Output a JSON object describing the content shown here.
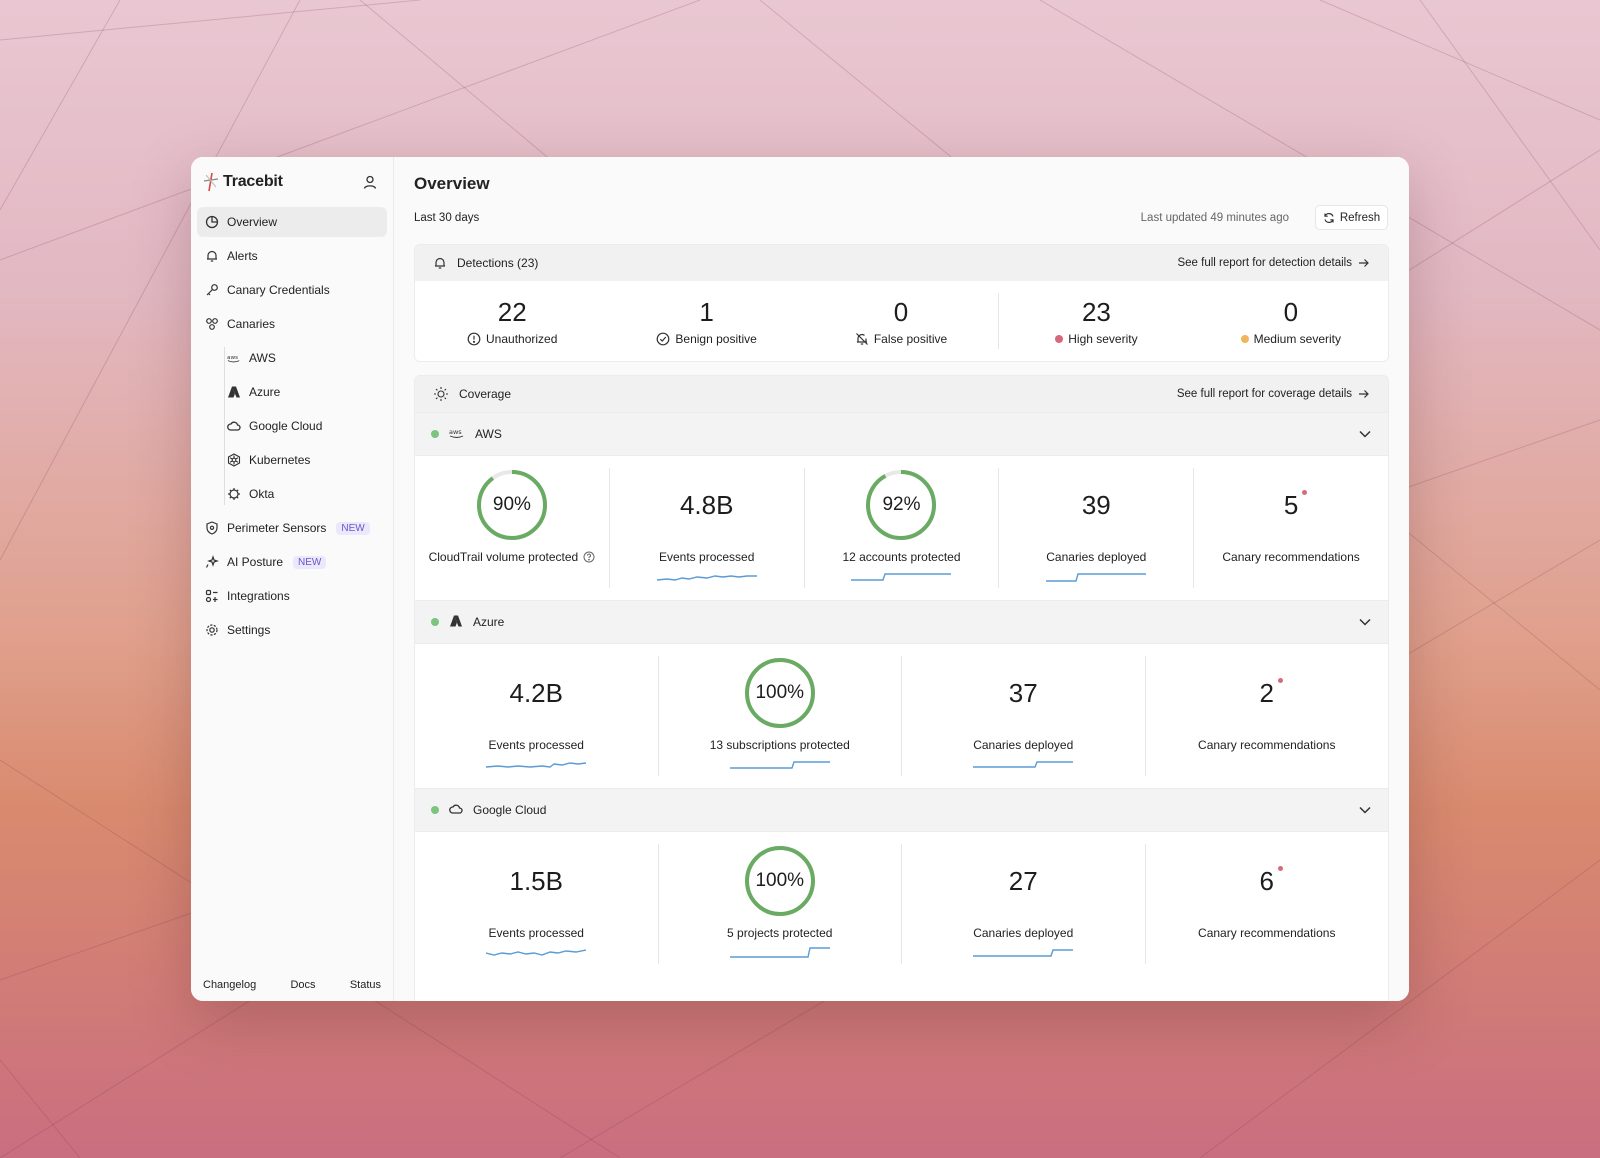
{
  "app": {
    "brand": "Tracebit"
  },
  "sidebar": {
    "items": [
      {
        "label": "Overview",
        "icon": "pie-chart-icon"
      },
      {
        "label": "Alerts",
        "icon": "bell-icon"
      },
      {
        "label": "Canary Credentials",
        "icon": "key-icon"
      },
      {
        "label": "Canaries",
        "icon": "canaries-icon"
      },
      {
        "label": "AWS",
        "icon": "aws-icon"
      },
      {
        "label": "Azure",
        "icon": "azure-icon"
      },
      {
        "label": "Google Cloud",
        "icon": "cloud-icon"
      },
      {
        "label": "Kubernetes",
        "icon": "kubernetes-icon"
      },
      {
        "label": "Okta",
        "icon": "okta-icon"
      },
      {
        "label": "Perimeter Sensors",
        "icon": "shield-icon",
        "badge": "NEW"
      },
      {
        "label": "AI Posture",
        "icon": "sparkle-icon",
        "badge": "NEW"
      },
      {
        "label": "Integrations",
        "icon": "integrations-icon"
      },
      {
        "label": "Settings",
        "icon": "gear-icon"
      }
    ],
    "footer": {
      "changelog": "Changelog",
      "docs": "Docs",
      "status": "Status"
    }
  },
  "header": {
    "title": "Overview",
    "range": "Last 30 days",
    "updated": "Last updated 49 minutes ago",
    "refresh": "Refresh"
  },
  "detections": {
    "title": "Detections (23)",
    "link": "See full report for detection details",
    "stats": [
      {
        "value": "22",
        "label": "Unauthorized"
      },
      {
        "value": "1",
        "label": "Benign positive"
      },
      {
        "value": "0",
        "label": "False positive"
      },
      {
        "value": "23",
        "label": "High severity",
        "color": "#d9667a"
      },
      {
        "value": "0",
        "label": "Medium severity",
        "color": "#efb55a"
      }
    ]
  },
  "coverage": {
    "title": "Coverage",
    "link": "See full report for coverage details",
    "status_color": "#7cc47f",
    "ring_color": "#6aab63",
    "spark_color": "#5b9bd5",
    "aws": {
      "name": "AWS",
      "ring1": {
        "pct": "90%",
        "value": 0.9,
        "label": "CloudTrail volume protected"
      },
      "events": {
        "value": "4.8B",
        "label": "Events processed"
      },
      "ring2": {
        "pct": "92%",
        "value": 0.92,
        "label": "12 accounts protected"
      },
      "canaries": {
        "value": "39",
        "label": "Canaries deployed"
      },
      "recs": {
        "value": "5",
        "label": "Canary recommendations"
      }
    },
    "azure": {
      "name": "Azure",
      "events": {
        "value": "4.2B",
        "label": "Events processed"
      },
      "ring": {
        "pct": "100%",
        "value": 1.0,
        "label": "13 subscriptions protected"
      },
      "canaries": {
        "value": "37",
        "label": "Canaries deployed"
      },
      "recs": {
        "value": "2",
        "label": "Canary recommendations"
      }
    },
    "gcp": {
      "name": "Google Cloud",
      "events": {
        "value": "1.5B",
        "label": "Events processed"
      },
      "ring": {
        "pct": "100%",
        "value": 1.0,
        "label": "5 projects protected"
      },
      "canaries": {
        "value": "27",
        "label": "Canaries deployed"
      },
      "recs": {
        "value": "6",
        "label": "Canary recommendations"
      }
    }
  }
}
